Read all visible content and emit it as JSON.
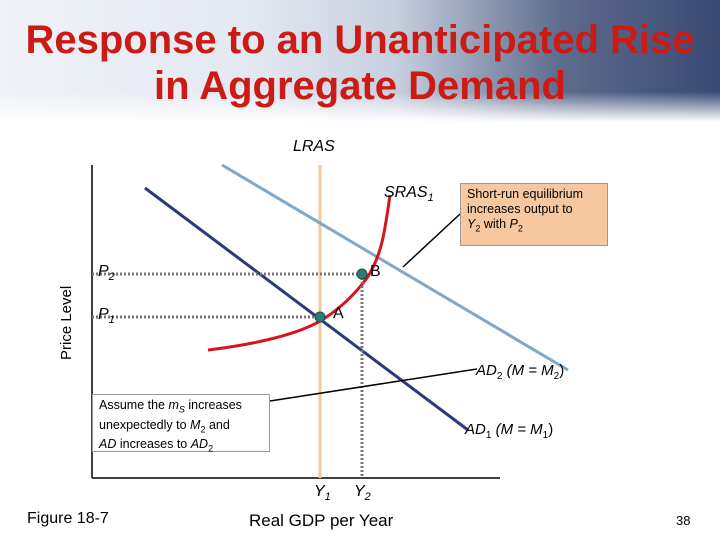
{
  "slide": {
    "title_line1": "Response to an Unanticipated Rise",
    "title_line2": "in Aggregate Demand",
    "figure_label": "Figure 18-7",
    "page_number": "38"
  },
  "diagram": {
    "y_axis_label": "Price Level",
    "x_axis_label": "Real GDP per Year",
    "curves": {
      "lras": "LRAS",
      "sras": "SRAS",
      "sras_sub": "1",
      "ad2_main": "AD",
      "ad2_sub": "2",
      "ad2_text": " (M = M",
      "ad2_sub2": "2",
      "ad2_close": ")",
      "ad1_main": "AD",
      "ad1_sub": "1",
      "ad1_text": " (M = M",
      "ad1_sub2": "1",
      "ad1_close": ")"
    },
    "points": {
      "a": "A",
      "b": "B"
    },
    "price_levels": {
      "p": "P",
      "p2_sub": "2",
      "p1_sub": "1"
    },
    "outputs": {
      "y": "Y",
      "y1_sub": "1",
      "y2_sub": "2"
    },
    "callout_right": {
      "line1": "Short-run equilibrium",
      "line2": "increases output to",
      "y": "Y",
      "y_sub": "2",
      "with": " with ",
      "p": "P",
      "p_sub": "2"
    },
    "callout_left": {
      "line1_pre": "Assume the ",
      "m": "m",
      "m_sub": "S",
      "line1_post": " increases",
      "line2_pre": "unexpectedly to ",
      "M": "M",
      "M_sub": "2",
      "line2_post": " and",
      "ad": "AD",
      "line3_mid": " increases to ",
      "ad2": "AD",
      "ad2_sub": "2"
    },
    "colors": {
      "lras": "#f2c894",
      "ad1": "#2b3a7a",
      "ad2": "#7ea7c9",
      "sras": "#d4141f",
      "point": "#2e7c78",
      "title": "#cc1a14",
      "callout_fill": "#f7c89f"
    }
  }
}
